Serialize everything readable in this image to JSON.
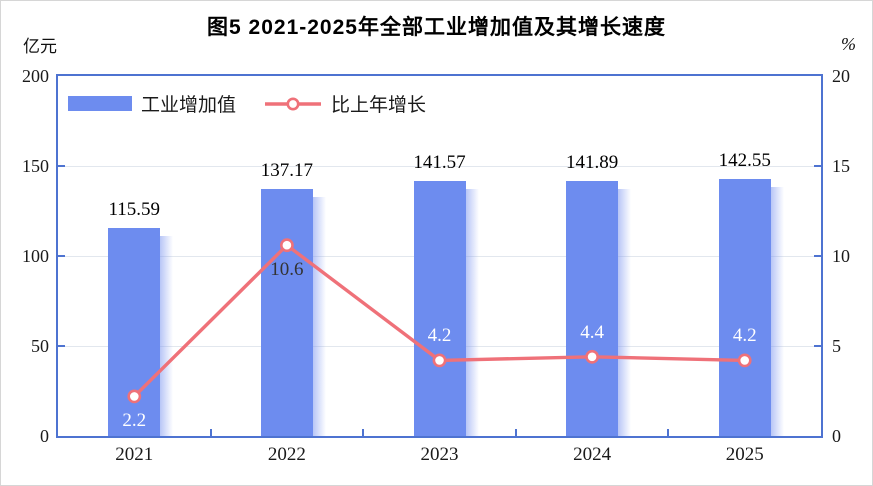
{
  "page": {
    "background": "#ffffff",
    "border_color": "#d6d6d6"
  },
  "chart_data": {
    "type": "bar+line",
    "title": "图5 2021-2025年全部工业增加值及其增长速度",
    "categories": [
      "2021",
      "2022",
      "2023",
      "2024",
      "2025"
    ],
    "series": [
      {
        "name": "工业增加值",
        "type": "bar",
        "axis": "left",
        "color": "#6d8cef",
        "values": [
          115.59,
          137.17,
          141.57,
          141.89,
          142.55
        ],
        "labels": [
          "115.59",
          "137.17",
          "141.57",
          "141.89",
          "142.55"
        ]
      },
      {
        "name": "比上年增长",
        "type": "line",
        "axis": "right",
        "color": "#ef7179",
        "marker": "open-circle",
        "values": [
          2.2,
          10.6,
          4.2,
          4.4,
          4.2
        ],
        "labels": [
          "2.2",
          "10.6",
          "4.2",
          "4.4",
          "4.2"
        ],
        "label_placements": [
          "below",
          "below",
          "above",
          "above",
          "above"
        ],
        "label_tones": [
          "light",
          "dark",
          "light",
          "light",
          "light"
        ]
      }
    ],
    "axes": {
      "left": {
        "unit": "亿元",
        "min": 0,
        "max": 200,
        "ticks": [
          0,
          50,
          100,
          150,
          200
        ]
      },
      "right": {
        "unit": "%",
        "min": 0,
        "max": 20,
        "ticks": [
          0,
          5,
          10,
          15,
          20
        ]
      },
      "x": {
        "labels": [
          "2021",
          "2022",
          "2023",
          "2024",
          "2025"
        ]
      }
    },
    "legend": {
      "position": "top-left"
    },
    "grid": {
      "horizontal": true,
      "color": "#e2e7ee"
    },
    "frame_color": "#4e73d1"
  }
}
